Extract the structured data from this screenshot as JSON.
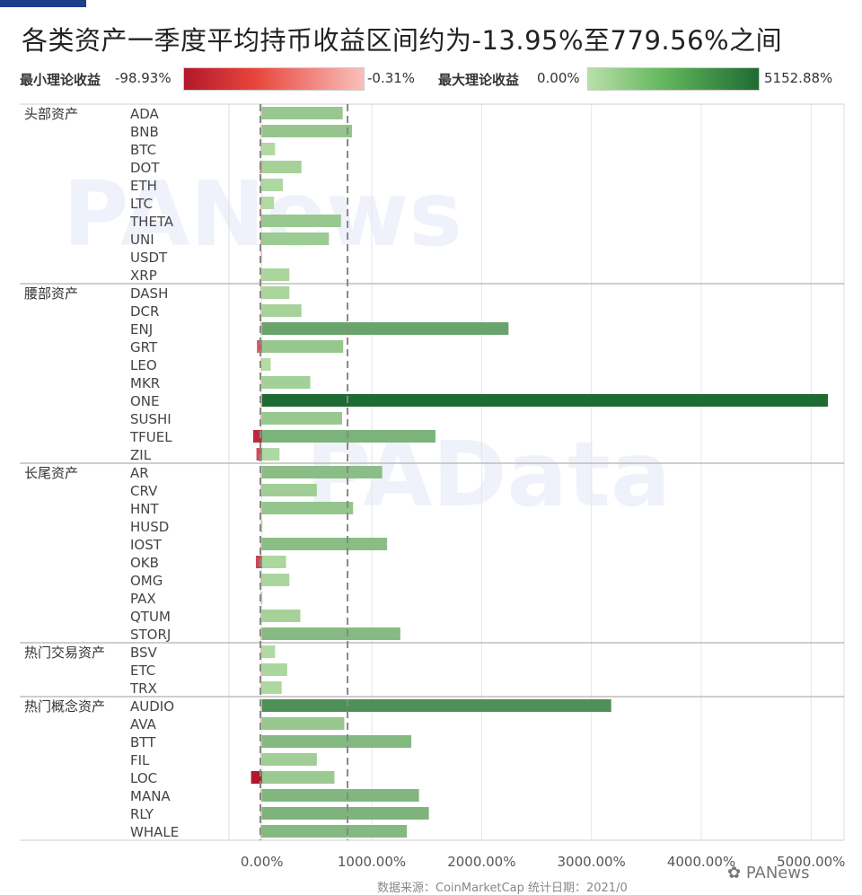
{
  "title": "各类资产一季度平均持币收益区间约为-13.95%至779.56%之间",
  "legend": {
    "min_label": "最小理论收益",
    "min_low": "-98.93%",
    "min_high": "-0.31%",
    "max_label": "最大理论收益",
    "max_low": "0.00%",
    "max_high": "5152.88%"
  },
  "watermarks": [
    "PANews",
    "PAData"
  ],
  "footer_text": "数据来源：CoinMarketCap  统计日期：2021/0",
  "wechat_text": "PANews",
  "colors": {
    "neg_dark": "#b2182b",
    "neg_light": "#f9c0bc",
    "pos_light": "#b8e0a8",
    "pos_dark": "#1e6b33",
    "ref_line": "#888888",
    "grid": "#e6e6e6"
  },
  "chart_data": {
    "type": "bar",
    "xlim": [
      -300,
      5300
    ],
    "x_ticks": [
      0,
      1000,
      2000,
      3000,
      4000,
      5000
    ],
    "x_tick_labels": [
      "0.00%",
      "1000.00%",
      "2000.00%",
      "3000.00%",
      "4000.00%",
      "5000.00%"
    ],
    "reference_lines": [
      -13.95,
      779.56
    ],
    "groups": [
      {
        "name": "头部资产",
        "items": [
          {
            "asset": "ADA",
            "min": -2,
            "max": 735
          },
          {
            "asset": "BNB",
            "min": -1,
            "max": 820
          },
          {
            "asset": "BTC",
            "min": -2,
            "max": 120
          },
          {
            "asset": "DOT",
            "min": -20,
            "max": 360
          },
          {
            "asset": "ETH",
            "min": -5,
            "max": 190
          },
          {
            "asset": "LTC",
            "min": -4,
            "max": 110
          },
          {
            "asset": "THETA",
            "min": -12,
            "max": 720
          },
          {
            "asset": "UNI",
            "min": -10,
            "max": 610
          },
          {
            "asset": "USDT",
            "min": -0.31,
            "max": 0
          },
          {
            "asset": "XRP",
            "min": -3,
            "max": 250
          }
        ]
      },
      {
        "name": "腰部资产",
        "items": [
          {
            "asset": "DASH",
            "min": -3,
            "max": 250
          },
          {
            "asset": "DCR",
            "min": -2,
            "max": 360
          },
          {
            "asset": "ENJ",
            "min": -5,
            "max": 2245
          },
          {
            "asset": "GRT",
            "min": -45,
            "max": 740
          },
          {
            "asset": "LEO",
            "min": -2,
            "max": 80
          },
          {
            "asset": "MKR",
            "min": -2,
            "max": 440
          },
          {
            "asset": "ONE",
            "min": -4,
            "max": 5152.88
          },
          {
            "asset": "SUSHI",
            "min": -3,
            "max": 730
          },
          {
            "asset": "TFUEL",
            "min": -80,
            "max": 1580
          },
          {
            "asset": "ZIL",
            "min": -50,
            "max": 160
          }
        ]
      },
      {
        "name": "长尾资产",
        "items": [
          {
            "asset": "AR",
            "min": -2,
            "max": 1095
          },
          {
            "asset": "CRV",
            "min": -4,
            "max": 500
          },
          {
            "asset": "HNT",
            "min": -3,
            "max": 830
          },
          {
            "asset": "HUSD",
            "min": -1,
            "max": 5
          },
          {
            "asset": "IOST",
            "min": -4,
            "max": 1140
          },
          {
            "asset": "OKB",
            "min": -55,
            "max": 220
          },
          {
            "asset": "OMG",
            "min": -5,
            "max": 250
          },
          {
            "asset": "PAX",
            "min": -1,
            "max": 4
          },
          {
            "asset": "QTUM",
            "min": -4,
            "max": 350
          },
          {
            "asset": "STORJ",
            "min": -3,
            "max": 1260
          }
        ]
      },
      {
        "name": "热门交易资产",
        "items": [
          {
            "asset": "BSV",
            "min": -3,
            "max": 120
          },
          {
            "asset": "ETC",
            "min": -2,
            "max": 230
          },
          {
            "asset": "TRX",
            "min": -3,
            "max": 180
          }
        ]
      },
      {
        "name": "热门概念资产",
        "items": [
          {
            "asset": "AUDIO",
            "min": -2,
            "max": 3180
          },
          {
            "asset": "AVA",
            "min": -3,
            "max": 750
          },
          {
            "asset": "BTT",
            "min": -4,
            "max": 1360
          },
          {
            "asset": "FIL",
            "min": -2,
            "max": 500
          },
          {
            "asset": "LOC",
            "min": -98.93,
            "max": 660
          },
          {
            "asset": "MANA",
            "min": -3,
            "max": 1430
          },
          {
            "asset": "RLY",
            "min": -3,
            "max": 1520
          },
          {
            "asset": "WHALE",
            "min": -12,
            "max": 1320
          }
        ]
      }
    ]
  }
}
